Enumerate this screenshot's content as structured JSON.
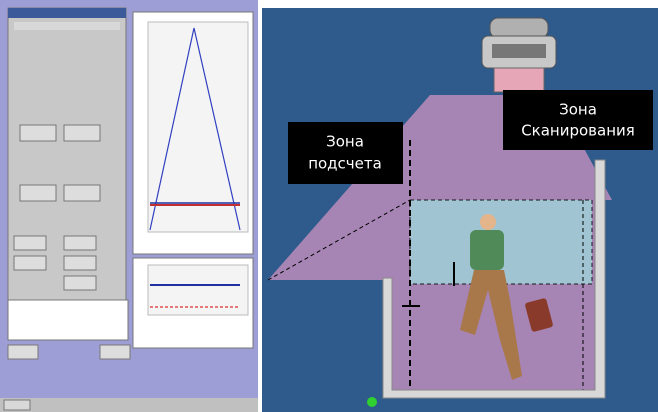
{
  "labels": {
    "counting_zone": [
      "Зона",
      "подсчета"
    ],
    "scanning_zone": [
      "Зона",
      "Сканирования"
    ]
  }
}
